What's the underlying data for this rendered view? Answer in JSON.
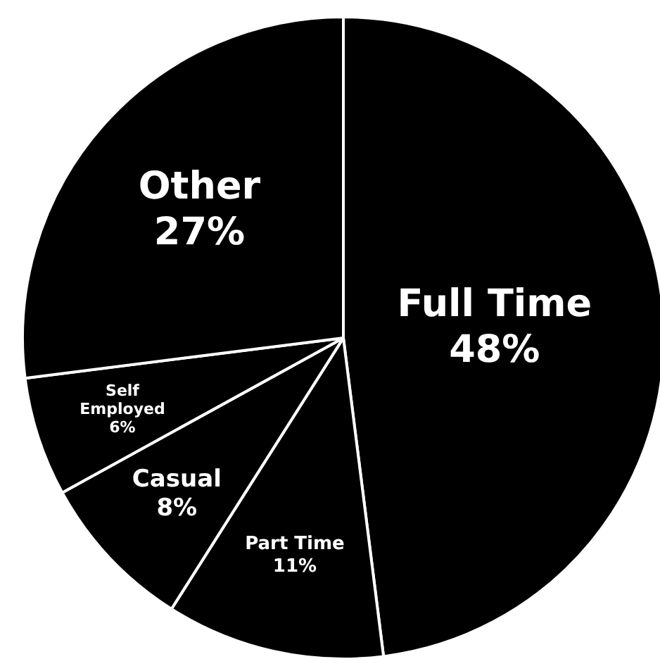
{
  "chart_data": {
    "type": "pie",
    "categories": [
      "Full Time",
      "Part Time",
      "Casual",
      "Self Employed",
      "Other"
    ],
    "values": [
      48,
      11,
      8,
      6,
      27
    ],
    "colors": [
      "#000000",
      "#000000",
      "#000000",
      "#000000",
      "#000000"
    ],
    "value_labels": [
      "48%",
      "11%",
      "8%",
      "6%",
      "27%"
    ]
  }
}
